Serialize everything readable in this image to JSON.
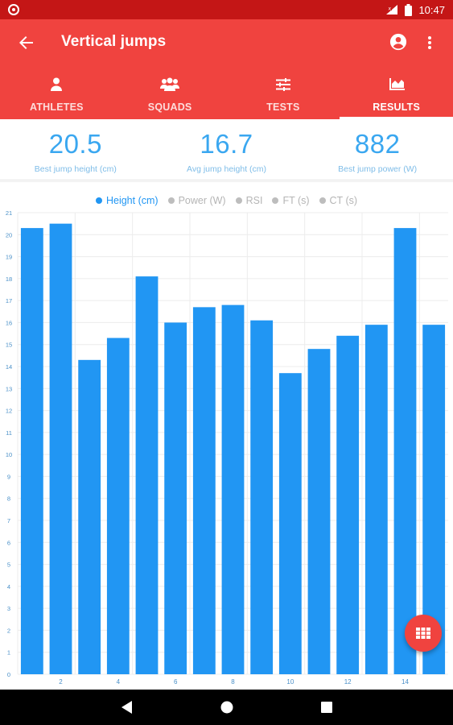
{
  "status_bar": {
    "time": "10:47"
  },
  "app_bar": {
    "title": "Vertical jumps",
    "tabs": [
      {
        "label": "ATHLETES",
        "icon": "person-icon",
        "active": false
      },
      {
        "label": "SQUADS",
        "icon": "group-icon",
        "active": false
      },
      {
        "label": "TESTS",
        "icon": "sliders-icon",
        "active": false
      },
      {
        "label": "RESULTS",
        "icon": "area-chart-icon",
        "active": true
      }
    ]
  },
  "stats": [
    {
      "value": "20.5",
      "label": "Best jump height (cm)"
    },
    {
      "value": "16.7",
      "label": "Avg jump height (cm)"
    },
    {
      "value": "882",
      "label": "Best jump power (W)"
    }
  ],
  "legend": [
    {
      "label": "Height (cm)",
      "active": true
    },
    {
      "label": "Power (W)",
      "active": false
    },
    {
      "label": "RSI",
      "active": false
    },
    {
      "label": "FT (s)",
      "active": false
    },
    {
      "label": "CT (s)",
      "active": false
    }
  ],
  "colors": {
    "primary": "#f0433f",
    "status_bar": "#c41616",
    "bar": "#2196f3",
    "stat_value": "#3aa7f0"
  },
  "chart_data": {
    "type": "bar",
    "categories": [
      1,
      2,
      3,
      4,
      5,
      6,
      7,
      8,
      9,
      10,
      11,
      12,
      13,
      14,
      15
    ],
    "x_tick_labels": [
      "2",
      "4",
      "6",
      "8",
      "10",
      "12",
      "14"
    ],
    "series": [
      {
        "name": "Height (cm)",
        "values": [
          20.3,
          20.5,
          14.3,
          15.3,
          18.1,
          16.0,
          16.7,
          16.8,
          16.1,
          13.7,
          14.8,
          15.4,
          15.9,
          20.3,
          15.9
        ]
      }
    ],
    "ylim": [
      0,
      21
    ],
    "y_ticks": [
      0,
      1,
      2,
      3,
      4,
      5,
      6,
      7,
      8,
      9,
      10,
      11,
      12,
      13,
      14,
      15,
      16,
      17,
      18,
      19,
      20,
      21
    ],
    "grid": true,
    "legend_position": "top-center"
  }
}
